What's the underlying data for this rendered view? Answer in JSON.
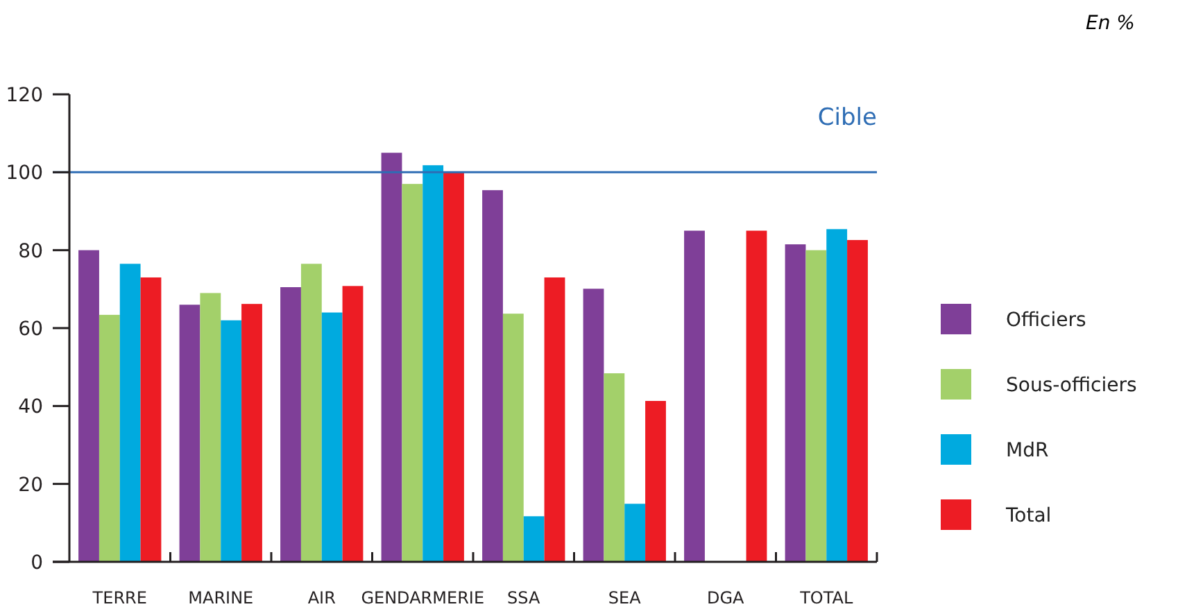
{
  "chart_data": {
    "type": "bar",
    "subtitle": "En %",
    "categories": [
      "TERRE",
      "MARINE",
      "AIR",
      "GENDARMERIE",
      "SSA",
      "SEA",
      "DGA",
      "TOTAL"
    ],
    "series": [
      {
        "name": "Officiers",
        "color": "#7f3f98",
        "values": [
          80,
          66,
          70.5,
          105,
          95.4,
          70.1,
          85,
          81.5
        ]
      },
      {
        "name": "Sous-officiers",
        "color": "#a3d06a",
        "values": [
          63.4,
          69,
          76.5,
          97,
          63.7,
          48.4,
          0,
          80
        ]
      },
      {
        "name": "MdR",
        "color": "#00aadf",
        "values": [
          76.5,
          62,
          64,
          101.8,
          11.7,
          14.9,
          0,
          85.4
        ]
      },
      {
        "name": "Total",
        "color": "#ed1c24",
        "values": [
          73,
          66.2,
          70.8,
          100,
          73,
          41.3,
          85,
          82.6
        ]
      }
    ],
    "ylim": [
      0,
      120
    ],
    "yticks": [
      0,
      20,
      40,
      60,
      80,
      100,
      120
    ],
    "grid": false,
    "legend": "right",
    "ref_lines": [
      {
        "axis": "y",
        "value": 100,
        "label": "Cible",
        "color": "#2e6db4"
      }
    ]
  }
}
